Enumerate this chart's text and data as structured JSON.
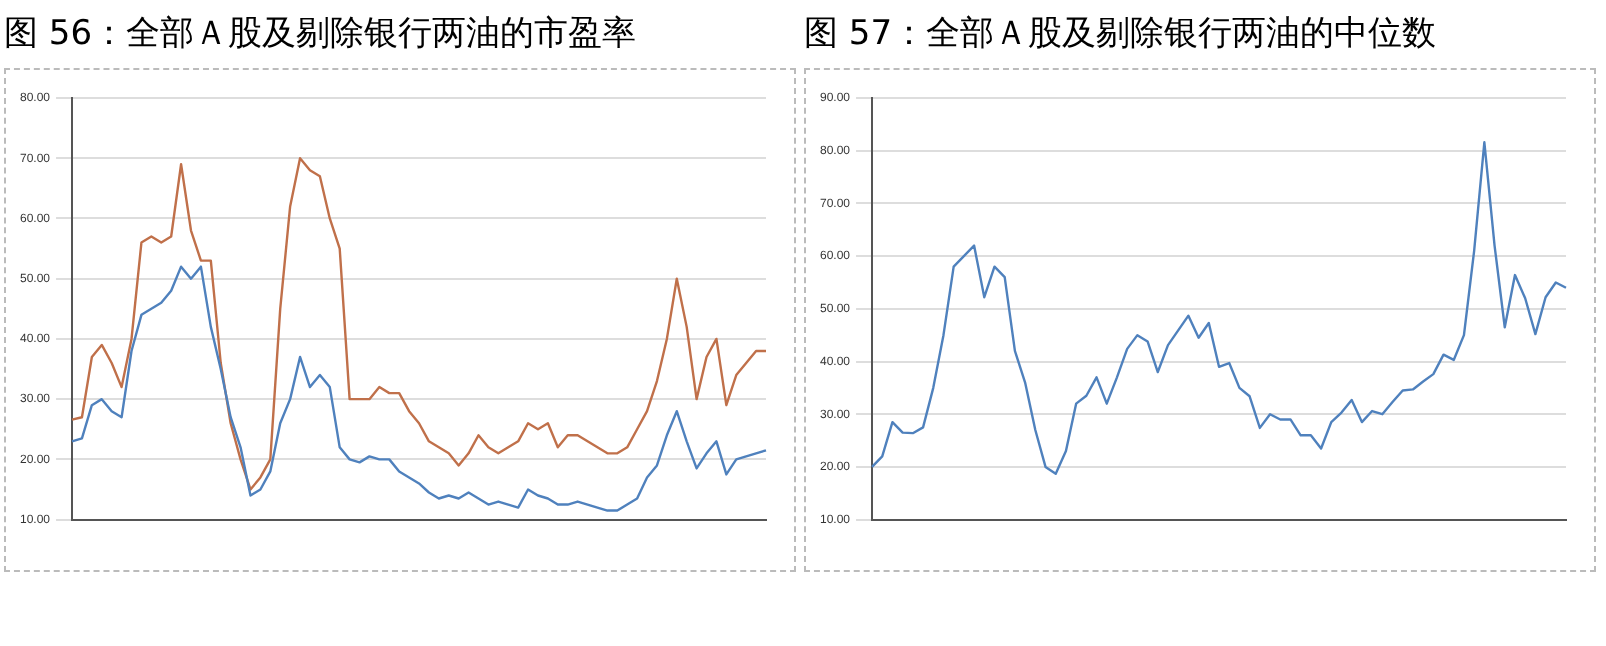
{
  "chart_data": [
    {
      "type": "line",
      "title": "图 56：全部Ａ股及剔除银行两油的市盈率",
      "categories": [
        null,
        null,
        null,
        null,
        null,
        null,
        null,
        null,
        null,
        null,
        null,
        null,
        null,
        null,
        null,
        null,
        null,
        null,
        null,
        null,
        null,
        null,
        null,
        null,
        null,
        null,
        null,
        null,
        null,
        null,
        null,
        null,
        null,
        null,
        null,
        null,
        null,
        null,
        null,
        null,
        null,
        null,
        null,
        null,
        null,
        null,
        null,
        null,
        null,
        null,
        null,
        null,
        null,
        null,
        null,
        null,
        null,
        null,
        null,
        null,
        null,
        null,
        null,
        null,
        null,
        null,
        null,
        null,
        null,
        null,
        null
      ],
      "series": [
        {
          "color": "#4f81bd",
          "values": [
            23,
            23.5,
            29,
            30,
            28,
            27,
            38,
            44,
            45,
            46,
            48,
            52,
            50,
            52,
            42,
            35,
            27,
            22,
            14,
            15,
            18,
            26,
            30,
            37,
            32,
            34,
            32,
            22,
            20,
            19.5,
            20.5,
            20,
            20,
            18,
            17,
            16,
            14.5,
            13.5,
            14,
            13.5,
            14.5,
            13.5,
            12.5,
            13,
            12.5,
            12,
            15,
            14,
            13.5,
            12.5,
            12.5,
            13,
            12.5,
            12,
            11.5,
            11.5,
            12.5,
            13.5,
            17,
            19,
            24,
            28,
            23,
            18.5,
            21,
            23,
            17.5,
            20,
            20.5,
            21,
            21.5
          ]
        },
        {
          "color": "#c0704a",
          "values": [
            26.6,
            27,
            37,
            39,
            36,
            32,
            40,
            56,
            57,
            56,
            57,
            69,
            58,
            53,
            53,
            36,
            26,
            20,
            15,
            17,
            20,
            45,
            62,
            70,
            68,
            67,
            60,
            55,
            30,
            30,
            30,
            32,
            31,
            31,
            28,
            26,
            23,
            22,
            21,
            19,
            21,
            24,
            22,
            21,
            22,
            23,
            26,
            25,
            26,
            22,
            24,
            24,
            23,
            22,
            21,
            21,
            22,
            25,
            28,
            33,
            40,
            50,
            42,
            30,
            37,
            40,
            29,
            34,
            36,
            38,
            38
          ]
        }
      ],
      "ylim": [
        10,
        80
      ],
      "yticks": [
        {
          "value": 10,
          "label": "10.00"
        },
        {
          "value": 20,
          "label": "20.00"
        },
        {
          "value": 30,
          "label": "30.00"
        },
        {
          "value": 40,
          "label": "40.00"
        },
        {
          "value": 50,
          "label": "50.00"
        },
        {
          "value": 60,
          "label": "60.00"
        },
        {
          "value": 70,
          "label": "70.00"
        },
        {
          "value": 80,
          "label": "80.00"
        }
      ],
      "grid": "y",
      "marker": "none",
      "line_style": "solid"
    },
    {
      "type": "line",
      "title": "图 57：全部Ａ股及剔除银行两油的中位数",
      "categories": [
        null,
        null,
        null,
        null,
        null,
        null,
        null,
        null,
        null,
        null,
        null,
        null,
        null,
        null,
        null,
        null,
        null,
        null,
        null,
        null,
        null,
        null,
        null,
        null,
        null,
        null,
        null,
        null,
        null,
        null,
        null,
        null,
        null,
        null,
        null,
        null,
        null,
        null,
        null,
        null,
        null,
        null,
        null,
        null,
        null,
        null,
        null,
        null,
        null,
        null,
        null,
        null,
        null,
        null,
        null,
        null,
        null,
        null,
        null,
        null,
        null,
        null,
        null,
        null,
        null,
        null,
        null,
        null,
        null
      ],
      "series": [
        {
          "color": "#4f81bd",
          "values": [
            20,
            22,
            28.5,
            26.5,
            26.4,
            27.5,
            35,
            45,
            58,
            60,
            62,
            52.2,
            58,
            56,
            42,
            36,
            27,
            20,
            18.7,
            23,
            32,
            33.5,
            37,
            32,
            37,
            42.4,
            45,
            43.8,
            38,
            43.1,
            45.9,
            48.7,
            44.5,
            47.3,
            39,
            39.7,
            35,
            33.4,
            27.4,
            30,
            29,
            29,
            26,
            26,
            23.5,
            28.5,
            30.3,
            32.7,
            28.5,
            30.6,
            30,
            32.3,
            34.5,
            34.7,
            36.2,
            37.6,
            41.3,
            40.3,
            45,
            61,
            81.6,
            62,
            46.5,
            56.4,
            52,
            45.2,
            52.2,
            55,
            54
          ]
        }
      ],
      "ylim": [
        10,
        90
      ],
      "yticks": [
        {
          "value": 10,
          "label": "10.00"
        },
        {
          "value": 20,
          "label": "20.00"
        },
        {
          "value": 30,
          "label": "30.00"
        },
        {
          "value": 40,
          "label": "40.00"
        },
        {
          "value": 50,
          "label": "50.00"
        },
        {
          "value": 60,
          "label": "60.00"
        },
        {
          "value": 70,
          "label": "70.00"
        },
        {
          "value": 80,
          "label": "80.00"
        },
        {
          "value": 90,
          "label": "90.00"
        }
      ],
      "grid": "y",
      "marker": "none",
      "line_style": "solid"
    }
  ]
}
